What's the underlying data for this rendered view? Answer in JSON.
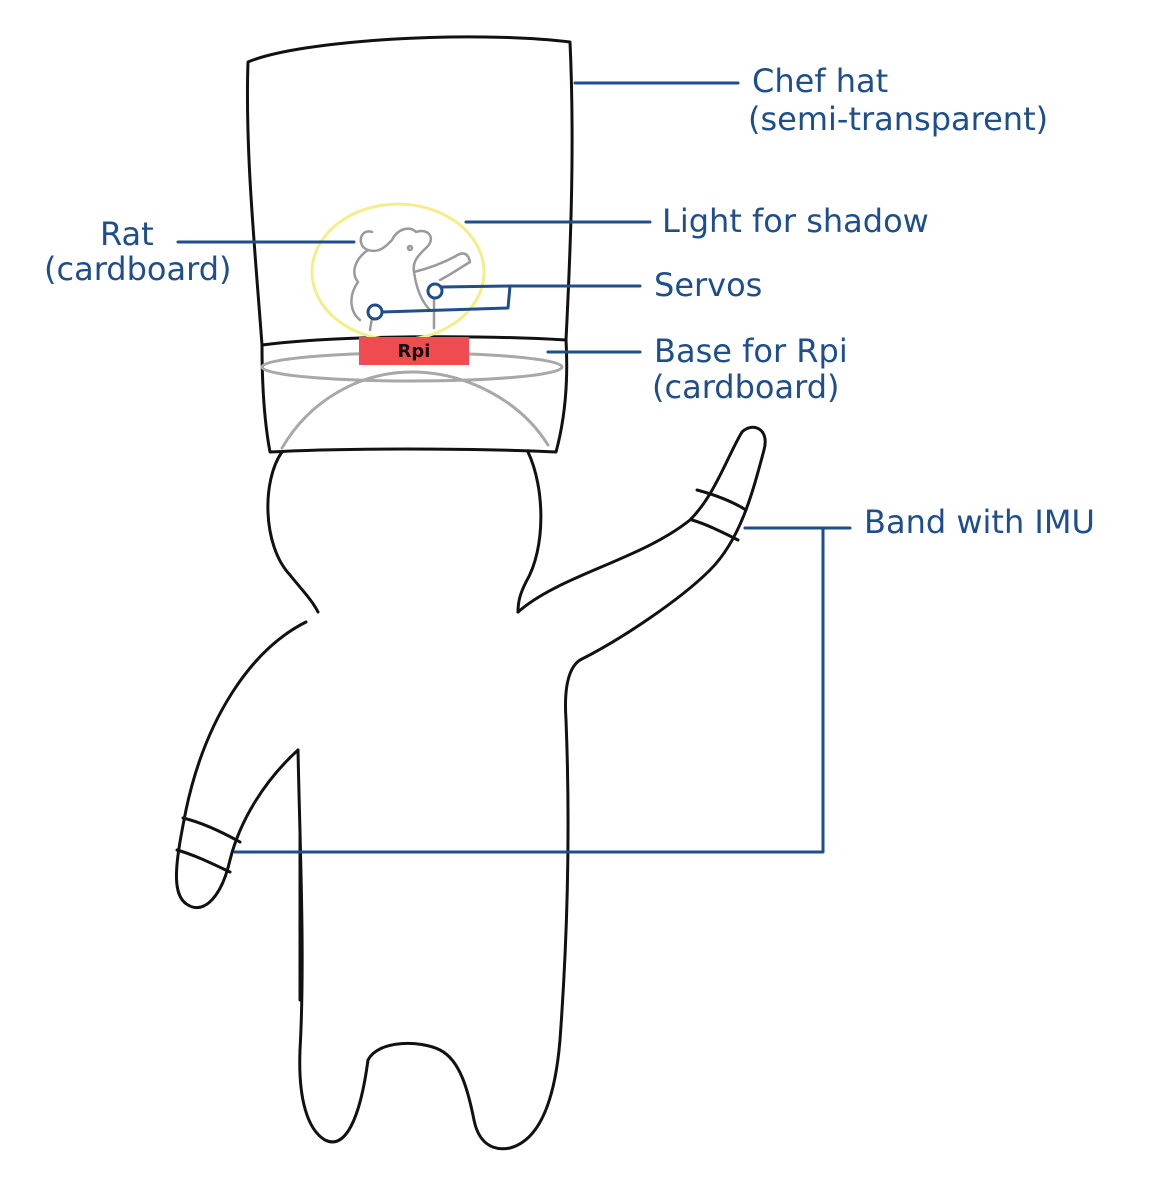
{
  "labels": {
    "chef_hat_line1": "Chef hat",
    "chef_hat_line2": "(semi-transparent)",
    "light": "Light for shadow",
    "rat_line1": "Rat",
    "rat_line2": "(cardboard)",
    "servos": "Servos",
    "base_line1": "Base for Rpi",
    "base_line2": "(cardboard)",
    "band": "Band with IMU",
    "rpi": "Rpi"
  },
  "colors": {
    "annotation": "#1f4e8c",
    "outline": "#111111",
    "rpi_board": "#ef4b50",
    "light_glow": "#f3ee8a",
    "base_inner": "#a8a8a8",
    "rat_sketch": "#9a9a9a"
  }
}
